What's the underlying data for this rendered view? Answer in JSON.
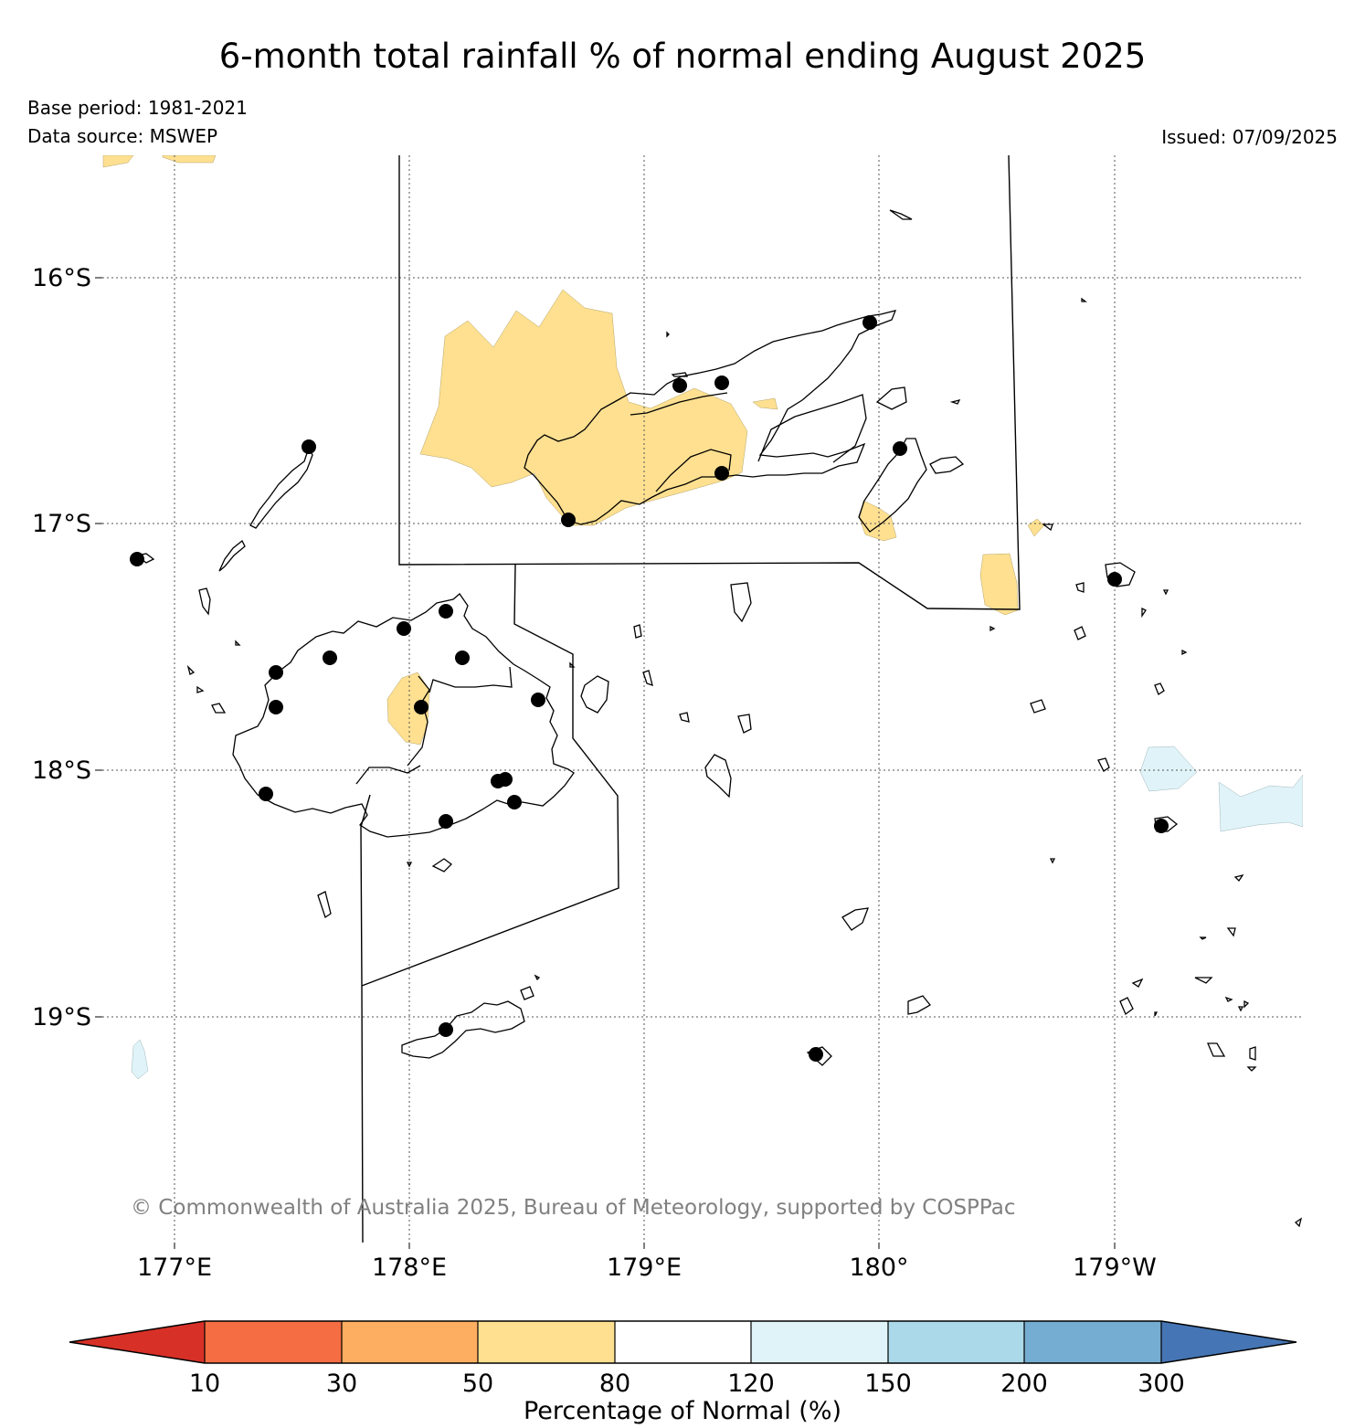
{
  "title": "6-month total rainfall % of normal ending August 2025",
  "base_period": "Base period: 1981-2021",
  "data_source": "Data source: MSWEP",
  "issued": "Issued: 07/09/2025",
  "copyright": "© Commonwealth of Australia 2025, Bureau of Meteorology, supported by COSPPac",
  "map": {
    "lat_labels": [
      "16°S",
      "17°S",
      "18°S",
      "19°S"
    ],
    "lon_labels": [
      "177°E",
      "178°E",
      "179°E",
      "180°",
      "179°W"
    ]
  },
  "colorbar": {
    "title": "Percentage of Normal (%)",
    "tick_labels": [
      "10",
      "30",
      "50",
      "80",
      "120",
      "150",
      "200",
      "300"
    ],
    "colors": [
      "#d73027",
      "#f46d43",
      "#fdae61",
      "#fee090",
      "#ffffff",
      "#e0f3f8",
      "#abd9e9",
      "#74add1",
      "#4575b4"
    ]
  }
}
